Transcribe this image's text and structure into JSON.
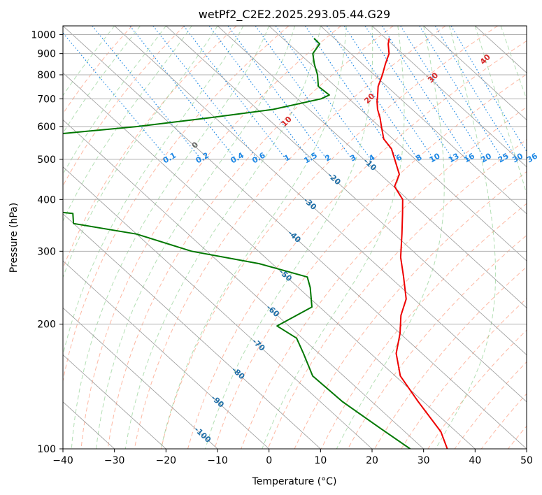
{
  "chart_data": {
    "type": "line",
    "title": "wetPf2_C2E2.2025.293.05.44.G29",
    "xlabel": "Temperature (°C)",
    "ylabel": "Pressure (hPa)",
    "xlim": [
      -40,
      50
    ],
    "ylim": [
      1050,
      100
    ],
    "x_ticks": [
      -40,
      -30,
      -20,
      -10,
      0,
      10,
      20,
      30,
      40,
      50
    ],
    "x_tick_labels": [
      "−40",
      "−30",
      "−20",
      "−10",
      "0",
      "10",
      "20",
      "30",
      "40",
      "50"
    ],
    "y_ticks": [
      100,
      200,
      300,
      400,
      500,
      600,
      700,
      800,
      900,
      1000
    ],
    "y_tick_labels": [
      "100",
      "200",
      "300",
      "400",
      "500",
      "600",
      "700",
      "800",
      "900",
      "1000"
    ],
    "skew": 1,
    "colors": {
      "temperature": "#ee0000",
      "dewpoint": "#007700",
      "isotherm": "#999999",
      "dry_adiabat": "#fc9272",
      "moist_adiabat": "#74c476",
      "mixing_ratio": "#1e88e5",
      "isotherm_label": "#1f6fa8",
      "moist_label": "#d62728",
      "zero_label": "#666666"
    },
    "series": [
      {
        "name": "Temperature",
        "points": [
          [
            100,
            -55.4
          ],
          [
            110,
            -53.0
          ],
          [
            130,
            -51.0
          ],
          [
            150,
            -49.0
          ],
          [
            170,
            -45.0
          ],
          [
            190,
            -40.0
          ],
          [
            210,
            -36.0
          ],
          [
            230,
            -31.5
          ],
          [
            260,
            -27.3
          ],
          [
            290,
            -23.7
          ],
          [
            330,
            -18.5
          ],
          [
            370,
            -14.0
          ],
          [
            400,
            -11.0
          ],
          [
            430,
            -9.8
          ],
          [
            460,
            -6.3
          ],
          [
            500,
            -4.0
          ],
          [
            530,
            -2.4
          ],
          [
            560,
            -1.8
          ],
          [
            600,
            0.4
          ],
          [
            630,
            2.0
          ],
          [
            660,
            3.3
          ],
          [
            690,
            4.9
          ],
          [
            710,
            6.1
          ],
          [
            750,
            8.3
          ],
          [
            800,
            11.6
          ],
          [
            850,
            14.5
          ],
          [
            900,
            17.4
          ],
          [
            950,
            19.3
          ],
          [
            980,
            20.7
          ]
        ]
      },
      {
        "name": "Dewpoint",
        "points": [
          [
            100,
            -62.6
          ],
          [
            112,
            -64.0
          ],
          [
            130,
            -65.7
          ],
          [
            150,
            -66.0
          ],
          [
            170,
            -63.0
          ],
          [
            185,
            -61.1
          ],
          [
            198,
            -62.3
          ],
          [
            220,
            -51.5
          ],
          [
            245,
            -47.7
          ],
          [
            260,
            -46.0
          ],
          [
            280,
            -52.5
          ],
          [
            300,
            -63.0
          ],
          [
            330,
            -70.0
          ],
          [
            350,
            -80.0
          ],
          [
            370,
            -78.0
          ],
          [
            385,
            -90.0
          ],
          [
            400,
            -110.0
          ],
          [
            430,
            -110.0
          ],
          [
            460,
            -80.0
          ],
          [
            480,
            -86.0
          ],
          [
            500,
            -110.0
          ],
          [
            550,
            -110.0
          ],
          [
            570,
            -68.0
          ],
          [
            600,
            -47.0
          ],
          [
            630,
            -31.0
          ],
          [
            660,
            -17.0
          ],
          [
            700,
            -5.4
          ],
          [
            715,
            -3.0
          ],
          [
            750,
            -3.3
          ],
          [
            800,
            -1.0
          ],
          [
            850,
            0.7
          ],
          [
            900,
            2.6
          ],
          [
            950,
            6.0
          ],
          [
            980,
            6.1
          ]
        ]
      }
    ],
    "isotherm_labels": [
      "-100",
      "-90",
      "-80",
      "-70",
      "-60",
      "-50",
      "-40",
      "-30",
      "-20",
      "-10"
    ],
    "isotherm_label_values": [
      -100,
      -90,
      -80,
      -70,
      -60,
      -50,
      -40,
      -30,
      -20,
      -10
    ],
    "mixing_ratio_labels": [
      "0.1",
      "0.2",
      "0.4",
      "0.6",
      "1",
      "1.5",
      "2",
      "3",
      "4",
      "6",
      "8",
      "10",
      "13",
      "16",
      "20",
      "25",
      "30",
      "36"
    ],
    "mixing_ratio_values": [
      0.1,
      0.2,
      0.4,
      0.6,
      1,
      1.5,
      2,
      3,
      4,
      6,
      8,
      10,
      13,
      16,
      20,
      25,
      30,
      36
    ],
    "moist_adiabat_labels": [
      "0",
      "10",
      "20",
      "30",
      "40"
    ],
    "moist_adiabat_values": [
      0,
      10,
      20,
      30,
      40
    ]
  }
}
